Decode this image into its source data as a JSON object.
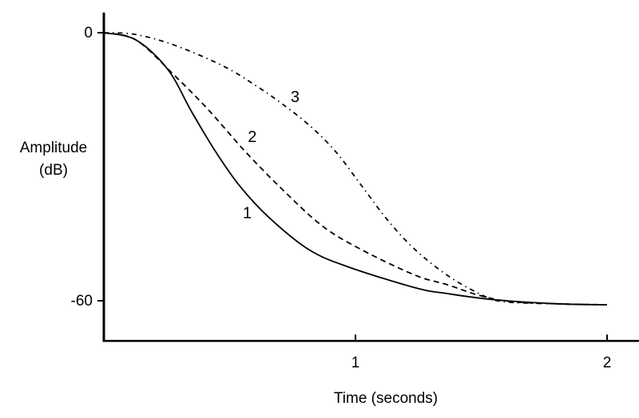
{
  "chart_data": {
    "type": "line",
    "title": "",
    "xlabel": "Time (seconds)",
    "ylabel_lines": [
      "Amplitude",
      "(dB)"
    ],
    "xlim": [
      0,
      2.13
    ],
    "ylim": [
      -69,
      4.5
    ],
    "x_ticks": [
      {
        "value": 1,
        "label": "1"
      },
      {
        "value": 2,
        "label": "2"
      }
    ],
    "y_ticks": [
      {
        "value": 0,
        "label": "0"
      },
      {
        "value": -60,
        "label": "-60"
      }
    ],
    "grid": false,
    "legend": "none (curves labeled inline)",
    "series": [
      {
        "name": "1",
        "style": "solid",
        "x": [
          0,
          0.127,
          0.254,
          0.349,
          0.444,
          0.54,
          0.657,
          0.816,
          0.975,
          1.238,
          1.365,
          1.556,
          1.81,
          2.0
        ],
        "y": [
          0,
          -1.6,
          -8.2,
          -17.7,
          -26.6,
          -34.3,
          -41.4,
          -48.6,
          -52.5,
          -57.1,
          -58.4,
          -59.8,
          -60.7,
          -60.9
        ],
        "label_at": [
          0.57,
          -41.5
        ]
      },
      {
        "name": "2",
        "style": "dashed",
        "x": [
          0,
          0.127,
          0.276,
          0.413,
          0.562,
          0.708,
          0.867,
          1.025,
          1.238,
          1.365,
          1.492,
          1.619,
          1.81,
          2.0
        ],
        "y": [
          0,
          -1.6,
          -9.3,
          -17.1,
          -26.6,
          -35,
          -43.2,
          -48.6,
          -54.3,
          -56.4,
          -58.8,
          -60.2,
          -60.7,
          -60.9
        ],
        "label_at": [
          0.59,
          -24.5
        ]
      },
      {
        "name": "3",
        "style": "dash-dot",
        "x": [
          0,
          0.127,
          0.286,
          0.476,
          0.603,
          0.708,
          0.816,
          0.921,
          1.025,
          1.13,
          1.238,
          1.365,
          1.492,
          1.587,
          1.81,
          2.0
        ],
        "y": [
          0,
          -0.4,
          -2.9,
          -7.5,
          -11.8,
          -15.9,
          -20.7,
          -26.6,
          -34.3,
          -42.1,
          -48.6,
          -54.3,
          -58.4,
          -60.2,
          -60.7,
          -60.9
        ],
        "label_at": [
          0.76,
          -15.5
        ]
      }
    ]
  }
}
